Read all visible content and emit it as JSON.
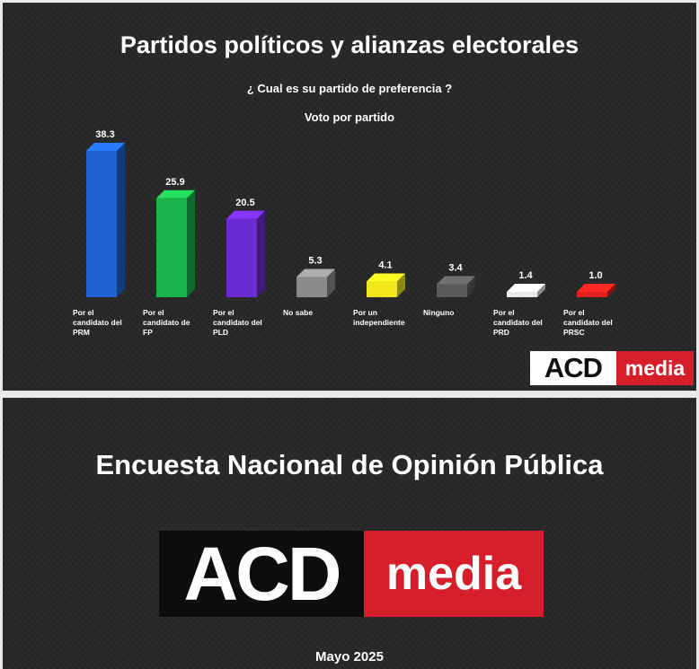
{
  "header": {
    "title": "Partidos políticos y alianzas electorales",
    "subtitle": "¿ Cual es su partido de preferencia ?"
  },
  "chart_data": {
    "type": "bar",
    "title": "Voto por partido",
    "xlabel": "",
    "ylabel": "",
    "ylim": [
      0,
      40
    ],
    "grid": false,
    "categories": [
      [
        "Por el",
        "candidato del",
        "PRM"
      ],
      [
        "Por el",
        "candidato de",
        "FP"
      ],
      [
        "Por el",
        "candidato del",
        "PLD"
      ],
      [
        "No sabe"
      ],
      [
        "Por un",
        "independiente"
      ],
      [
        "Ninguno"
      ],
      [
        "Por el",
        "candidato del",
        "PRD"
      ],
      [
        "Por el",
        "candidato del",
        "PRSC"
      ]
    ],
    "values": [
      38.3,
      25.9,
      20.5,
      5.3,
      4.1,
      3.4,
      1.4,
      1.0
    ],
    "value_labels": [
      "38.3",
      "25.9",
      "20.5",
      "5.3",
      "4.1",
      "3.4",
      "1.4",
      "1.0"
    ],
    "colors": [
      "#1f63d3",
      "#1db34b",
      "#6a2ad1",
      "#8a8a8a",
      "#f2e61a",
      "#5a5a5a",
      "#e8e8e8",
      "#e0201c"
    ]
  },
  "logo_small": {
    "acd": "ACD",
    "media": "media"
  },
  "footer": {
    "survey_title": "Encuesta Nacional de Opinión Pública",
    "logo_acd": "ACD",
    "logo_media": "media",
    "date": "Mayo 2025"
  }
}
